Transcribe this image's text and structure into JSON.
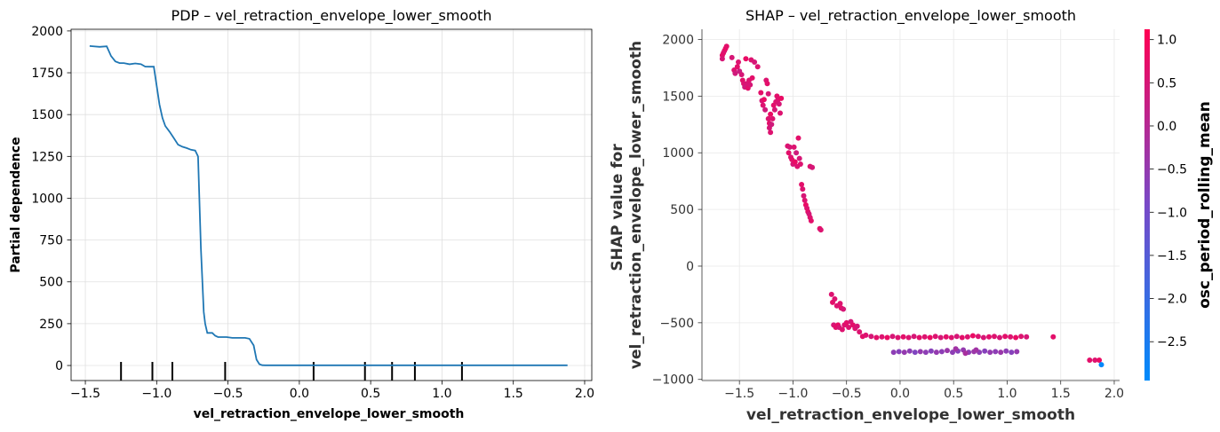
{
  "chart_data": [
    {
      "type": "line",
      "title": "PDP – vel_retraction_envelope_lower_smooth",
      "xlabel": "vel_retraction_envelope_lower_smooth",
      "ylabel": "Partial dependence",
      "xlim": [
        -1.6,
        2.05
      ],
      "ylim": [
        -90,
        2010
      ],
      "xticks": [
        -1.5,
        -1.0,
        -0.5,
        0.0,
        0.5,
        1.0,
        1.5,
        2.0
      ],
      "xtick_labels": [
        "−1.5",
        "−1.0",
        "−0.5",
        "0.0",
        "0.5",
        "1.0",
        "1.5",
        "2.0"
      ],
      "yticks": [
        0,
        250,
        500,
        750,
        1000,
        1250,
        1500,
        1750,
        2000
      ],
      "ytick_labels": [
        "0",
        "250",
        "500",
        "750",
        "1000",
        "1250",
        "1500",
        "1750",
        "2000"
      ],
      "grid": true,
      "line_color": "#1f77b4",
      "series": [
        {
          "x": [
            -1.47,
            -1.4,
            -1.35,
            -1.32,
            -1.29,
            -1.26,
            -1.23,
            -1.19,
            -1.15,
            -1.11,
            -1.08,
            -1.05,
            -1.02,
            -0.98,
            -0.96,
            -0.94,
            -0.91,
            -0.88,
            -0.85,
            -0.82,
            -0.79,
            -0.76,
            -0.73,
            -0.71,
            -0.69,
            -0.67,
            -0.66,
            -0.645,
            -0.63,
            -0.61,
            -0.59,
            -0.57,
            -0.54,
            -0.51,
            -0.47,
            -0.44,
            -0.41,
            -0.38,
            -0.35,
            -0.32,
            -0.3,
            -0.28,
            -0.26,
            -0.24,
            -0.2,
            0.0,
            0.5,
            1.0,
            1.5,
            1.88
          ],
          "y": [
            1910,
            1905,
            1908,
            1850,
            1818,
            1808,
            1808,
            1801,
            1806,
            1801,
            1787,
            1786,
            1786,
            1560,
            1480,
            1432,
            1398,
            1360,
            1320,
            1308,
            1300,
            1290,
            1285,
            1250,
            700,
            320,
            250,
            195,
            195,
            195,
            178,
            170,
            170,
            170,
            165,
            165,
            165,
            165,
            160,
            120,
            35,
            8,
            2,
            1,
            1,
            1,
            1,
            1,
            1,
            1
          ]
        }
      ],
      "rug_x": [
        -1.25,
        -1.03,
        -0.89,
        -0.52,
        0.1,
        0.46,
        0.65,
        0.81,
        1.14
      ],
      "rug_color": "#000000"
    },
    {
      "type": "scatter",
      "title": "SHAP – vel_retraction_envelope_lower_smooth",
      "xlabel": "vel_retraction_envelope_lower_smooth",
      "ylabel": "SHAP value for\nvel_retraction_envelope_lower_smooth",
      "colorbar_label": "osc_period_rolling_mean",
      "xlim": [
        -1.85,
        2.05
      ],
      "ylim": [
        -1010,
        2090
      ],
      "xticks": [
        -1.5,
        -1.0,
        -0.5,
        0.0,
        0.5,
        1.0,
        1.5,
        2.0
      ],
      "xtick_labels": [
        "−1.5",
        "−1.0",
        "−0.5",
        "0.0",
        "0.5",
        "1.0",
        "1.5",
        "2.0"
      ],
      "yticks": [
        -1000,
        -500,
        0,
        500,
        1000,
        1500,
        2000
      ],
      "ytick_labels": [
        "−1000",
        "−500",
        "0",
        "500",
        "1000",
        "1500",
        "2000"
      ],
      "colorbar_range": [
        -2.95,
        1.12
      ],
      "colorbar_ticks": [
        -2.5,
        -2.0,
        -1.5,
        -1.0,
        -0.5,
        0.0,
        0.5,
        1.0
      ],
      "colorbar_tick_labels": [
        "−2.5",
        "−2.0",
        "−1.5",
        "−1.0",
        "−0.5",
        "0.0",
        "0.5",
        "1.0"
      ],
      "colormap": [
        "#008afb",
        "#7849c7",
        "#ff0052"
      ],
      "grid": true,
      "points": [
        [
          -1.66,
          1860,
          0.7
        ],
        [
          -1.66,
          1830,
          0.5
        ],
        [
          -1.65,
          1880,
          0.7
        ],
        [
          -1.64,
          1900,
          0.6
        ],
        [
          -1.63,
          1920,
          0.8
        ],
        [
          -1.62,
          1940,
          0.7
        ],
        [
          -1.57,
          1840,
          0.5
        ],
        [
          -1.55,
          1730,
          0.6
        ],
        [
          -1.54,
          1700,
          0.4
        ],
        [
          -1.52,
          1760,
          0.7
        ],
        [
          -1.51,
          1800,
          0.6
        ],
        [
          -1.5,
          1720,
          0.3
        ],
        [
          -1.48,
          1690,
          0.5
        ],
        [
          -1.47,
          1640,
          0.7
        ],
        [
          -1.46,
          1610,
          0.6
        ],
        [
          -1.45,
          1580,
          0.4
        ],
        [
          -1.44,
          1830,
          0.8
        ],
        [
          -1.43,
          1610,
          0.5
        ],
        [
          -1.42,
          1570,
          0.7
        ],
        [
          -1.41,
          1640,
          0.6
        ],
        [
          -1.4,
          1600,
          0.5
        ],
        [
          -1.39,
          1820,
          0.6
        ],
        [
          -1.38,
          1660,
          0.7
        ],
        [
          -1.36,
          1800,
          0.5
        ],
        [
          -1.33,
          1760,
          0.6
        ],
        [
          -1.3,
          1530,
          0.7
        ],
        [
          -1.29,
          1460,
          0.5
        ],
        [
          -1.28,
          1420,
          0.6
        ],
        [
          -1.27,
          1470,
          0.8
        ],
        [
          -1.26,
          1380,
          0.4
        ],
        [
          -1.25,
          1640,
          0.6
        ],
        [
          -1.24,
          1610,
          0.7
        ],
        [
          -1.23,
          1520,
          0.5
        ],
        [
          -1.23,
          1300,
          0.6
        ],
        [
          -1.22,
          1260,
          0.7
        ],
        [
          -1.22,
          1220,
          0.5
        ],
        [
          -1.21,
          1180,
          0.6
        ],
        [
          -1.21,
          1340,
          0.8
        ],
        [
          -1.2,
          1250,
          0.4
        ],
        [
          -1.19,
          1300,
          0.6
        ],
        [
          -1.18,
          1420,
          0.7
        ],
        [
          -1.17,
          1380,
          0.5
        ],
        [
          -1.16,
          1450,
          0.6
        ],
        [
          -1.15,
          1500,
          0.7
        ],
        [
          -1.14,
          1470,
          0.6
        ],
        [
          -1.13,
          1430,
          0.5
        ],
        [
          -1.12,
          1350,
          0.6
        ],
        [
          -1.11,
          1480,
          0.8
        ],
        [
          -1.05,
          1060,
          0.6
        ],
        [
          -1.04,
          1000,
          0.7
        ],
        [
          -1.03,
          1050,
          0.5
        ],
        [
          -1.02,
          960,
          0.6
        ],
        [
          -1.01,
          940,
          0.7
        ],
        [
          -1.0,
          900,
          0.5
        ],
        [
          -0.99,
          1050,
          0.6
        ],
        [
          -0.98,
          920,
          0.8
        ],
        [
          -0.97,
          1000,
          0.4
        ],
        [
          -0.96,
          880,
          0.6
        ],
        [
          -0.95,
          1130,
          0.7
        ],
        [
          -0.94,
          950,
          0.5
        ],
        [
          -0.93,
          900,
          0.6
        ],
        [
          -0.92,
          720,
          0.7
        ],
        [
          -0.91,
          680,
          0.6
        ],
        [
          -0.9,
          620,
          0.5
        ],
        [
          -0.89,
          580,
          0.6
        ],
        [
          -0.88,
          540,
          0.8
        ],
        [
          -0.87,
          510,
          0.6
        ],
        [
          -0.86,
          480,
          0.7
        ],
        [
          -0.85,
          460,
          0.5
        ],
        [
          -0.84,
          430,
          0.6
        ],
        [
          -0.83,
          400,
          0.7
        ],
        [
          -0.84,
          880,
          0.6
        ],
        [
          -0.82,
          870,
          0.5
        ],
        [
          -0.75,
          330,
          0.7
        ],
        [
          -0.74,
          320,
          0.6
        ],
        [
          -0.64,
          -250,
          0.6
        ],
        [
          -0.63,
          -320,
          0.7
        ],
        [
          -0.62,
          -520,
          0.5
        ],
        [
          -0.61,
          -290,
          0.6
        ],
        [
          -0.6,
          -540,
          0.7
        ],
        [
          -0.59,
          -350,
          0.6
        ],
        [
          -0.58,
          -520,
          0.8
        ],
        [
          -0.57,
          -540,
          0.5
        ],
        [
          -0.56,
          -330,
          0.6
        ],
        [
          -0.55,
          -370,
          0.7
        ],
        [
          -0.54,
          -560,
          0.6
        ],
        [
          -0.53,
          -380,
          0.5
        ],
        [
          -0.52,
          -520,
          0.6
        ],
        [
          -0.5,
          -500,
          0.7
        ],
        [
          -0.48,
          -540,
          0.6
        ],
        [
          -0.46,
          -490,
          0.5
        ],
        [
          -0.44,
          -520,
          0.7
        ],
        [
          -0.42,
          -550,
          0.6
        ],
        [
          -0.4,
          -530,
          0.5
        ],
        [
          -0.38,
          -580,
          0.6
        ],
        [
          -0.35,
          -620,
          0.7
        ],
        [
          -0.32,
          -610,
          0.6
        ],
        [
          -0.27,
          -620,
          0.5
        ],
        [
          -0.22,
          -630,
          0.7
        ],
        [
          -0.17,
          -625,
          0.6
        ],
        [
          -0.12,
          -630,
          0.8
        ],
        [
          -0.07,
          -620,
          0.5
        ],
        [
          -0.02,
          -630,
          0.6
        ],
        [
          0.03,
          -625,
          0.7
        ],
        [
          0.08,
          -630,
          0.6
        ],
        [
          0.13,
          -620,
          0.5
        ],
        [
          0.18,
          -630,
          0.7
        ],
        [
          0.23,
          -625,
          0.6
        ],
        [
          0.28,
          -630,
          0.8
        ],
        [
          0.33,
          -620,
          0.6
        ],
        [
          0.38,
          -630,
          0.5
        ],
        [
          0.43,
          -625,
          0.7
        ],
        [
          0.48,
          -630,
          0.6
        ],
        [
          0.53,
          -620,
          0.5
        ],
        [
          0.58,
          -630,
          0.7
        ],
        [
          0.63,
          -625,
          0.6
        ],
        [
          0.68,
          -615,
          0.8
        ],
        [
          0.73,
          -620,
          0.6
        ],
        [
          0.78,
          -630,
          0.5
        ],
        [
          0.83,
          -625,
          0.7
        ],
        [
          0.88,
          -620,
          0.6
        ],
        [
          0.93,
          -630,
          0.5
        ],
        [
          0.98,
          -620,
          0.7
        ],
        [
          1.03,
          -625,
          0.6
        ],
        [
          1.08,
          -630,
          0.8
        ],
        [
          1.13,
          -620,
          0.6
        ],
        [
          1.18,
          -625,
          0.5
        ],
        [
          1.43,
          -625,
          0.7
        ],
        [
          -0.06,
          -760,
          -0.6
        ],
        [
          -0.01,
          -755,
          -0.7
        ],
        [
          0.04,
          -760,
          -0.5
        ],
        [
          0.09,
          -750,
          -0.6
        ],
        [
          0.14,
          -760,
          -0.8
        ],
        [
          0.19,
          -755,
          -0.5
        ],
        [
          0.24,
          -760,
          -0.6
        ],
        [
          0.29,
          -750,
          -0.7
        ],
        [
          0.34,
          -760,
          -0.5
        ],
        [
          0.39,
          -755,
          -0.6
        ],
        [
          0.44,
          -745,
          -0.4
        ],
        [
          0.49,
          -760,
          -0.6
        ],
        [
          0.54,
          -750,
          -0.7
        ],
        [
          0.59,
          -740,
          -0.5
        ],
        [
          0.64,
          -760,
          -0.6
        ],
        [
          0.69,
          -755,
          -0.4
        ],
        [
          0.74,
          -760,
          -0.6
        ],
        [
          0.79,
          -750,
          -0.7
        ],
        [
          0.84,
          -760,
          -0.5
        ],
        [
          0.89,
          -755,
          -0.6
        ],
        [
          0.94,
          -760,
          -0.4
        ],
        [
          0.99,
          -750,
          -0.6
        ],
        [
          1.04,
          -760,
          -0.7
        ],
        [
          1.09,
          -755,
          -0.5
        ],
        [
          0.52,
          -730,
          -0.3
        ],
        [
          0.61,
          -770,
          -0.2
        ],
        [
          0.71,
          -740,
          -0.3
        ],
        [
          1.77,
          -830,
          0.7
        ],
        [
          1.82,
          -830,
          0.6
        ],
        [
          1.86,
          -830,
          0.8
        ],
        [
          1.88,
          -870,
          -2.9
        ]
      ]
    }
  ]
}
